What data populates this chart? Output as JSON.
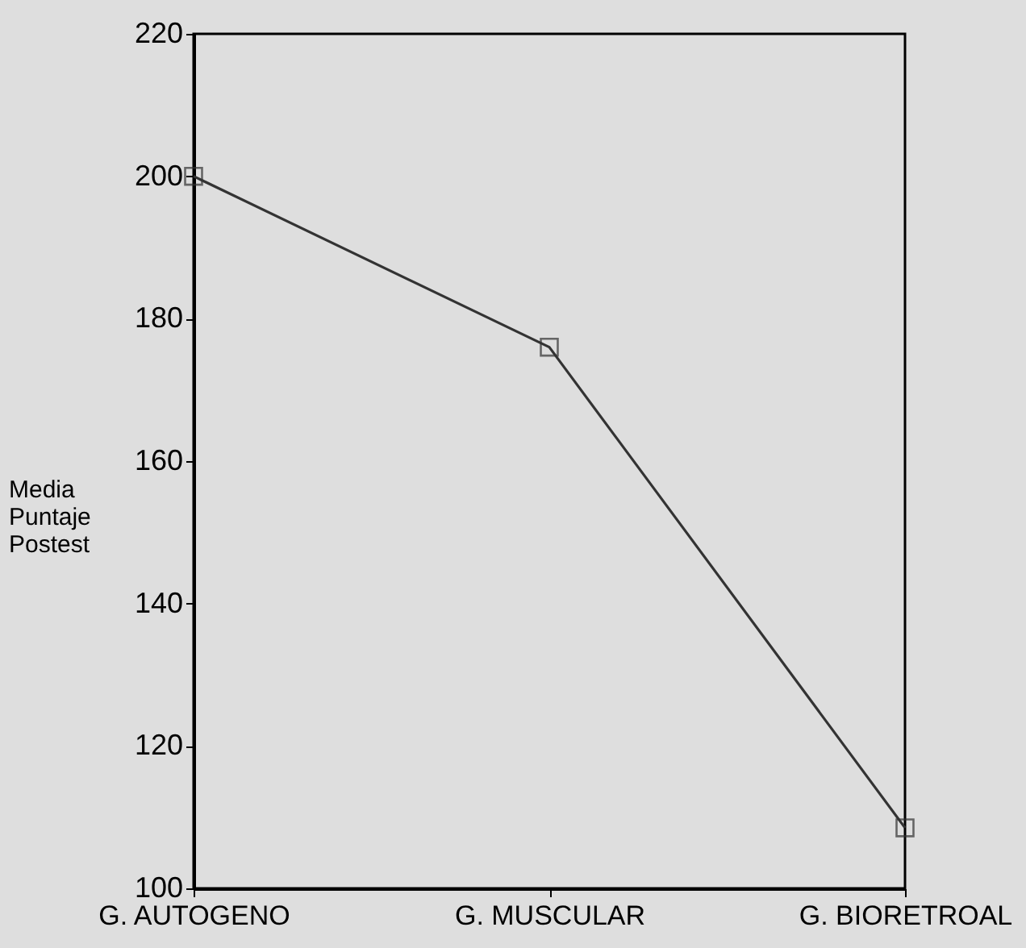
{
  "chart_data": {
    "type": "line",
    "ylabel": "Media Puntaje Postest",
    "categories": [
      "G. AUTOGENO",
      "G. MUSCULAR",
      "G. BIORETROAL"
    ],
    "series": [
      {
        "color": "#333333",
        "values": [
          200,
          176,
          108.5
        ]
      }
    ],
    "ylim": [
      100,
      220
    ],
    "yticks": [
      100,
      120,
      140,
      160,
      180,
      200,
      220
    ],
    "grid": false,
    "legend": false,
    "marker": "square",
    "line_style": "solid"
  }
}
